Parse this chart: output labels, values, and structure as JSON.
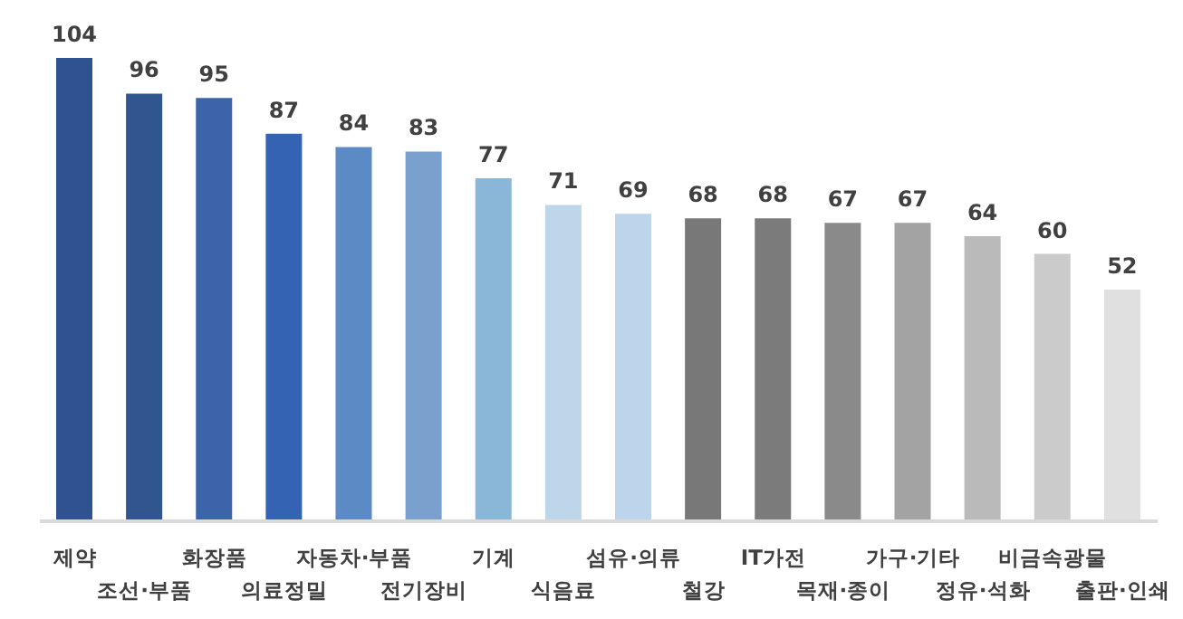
{
  "chart_data": {
    "type": "bar",
    "categories": [
      "제약",
      "조선·부품",
      "화장품",
      "의료정밀",
      "자동차·부품",
      "전기장비",
      "기계",
      "식음료",
      "섬유·의류",
      "철강",
      "IT가전",
      "목재·종이",
      "가구·기타",
      "정유·석화",
      "비금속광물",
      "출판·인쇄"
    ],
    "values": [
      104,
      96,
      95,
      87,
      84,
      83,
      77,
      71,
      69,
      68,
      68,
      67,
      67,
      64,
      60,
      52
    ],
    "colors": [
      "#2f5290",
      "#31568f",
      "#3d64aa",
      "#3563b3",
      "#5b8ac4",
      "#7aa0cd",
      "#8ab7d8",
      "#bed6ea",
      "#bcd5ea",
      "#787878",
      "#7b7b7b",
      "#8a8a8a",
      "#a3a3a3",
      "#bababa",
      "#cbcbcb",
      "#e0e0e0"
    ],
    "data_labels": true,
    "grid": false,
    "legend": false
  }
}
